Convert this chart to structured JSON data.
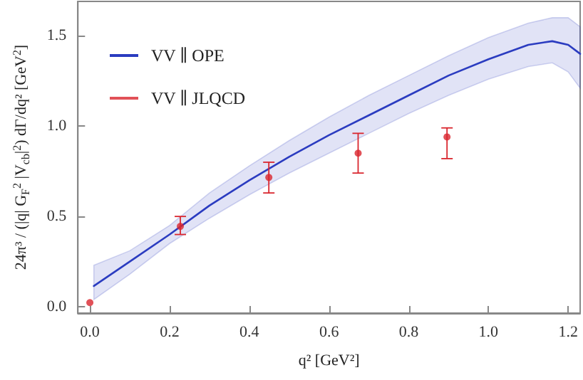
{
  "chart_data": {
    "type": "line",
    "xlabel": "q² [GeV²]",
    "ylabel": "24π³ / (|q| G$_{F}$$^{2}$ |V$_{cb}$|$^{2}$) dΓ/dq² [GeV$^{2}$]",
    "xlim": [
      -0.03,
      1.23
    ],
    "ylim": [
      -0.035,
      1.69
    ],
    "xticks": [
      {
        "value": 0,
        "label": "0.0"
      },
      {
        "value": 0.2,
        "label": "0.2"
      },
      {
        "value": 0.4,
        "label": "0.4"
      },
      {
        "value": 0.6,
        "label": "0.6"
      },
      {
        "value": 0.8,
        "label": "0.8"
      },
      {
        "value": 1.0,
        "label": "1.0"
      },
      {
        "value": 1.2,
        "label": "1.2"
      }
    ],
    "yticks": [
      {
        "value": 0,
        "label": "0.0"
      },
      {
        "value": 0.5,
        "label": "0.5"
      },
      {
        "value": 1.0,
        "label": "1.0"
      },
      {
        "value": 1.5,
        "label": "1.5"
      }
    ],
    "grid": false,
    "legend": "top left",
    "marker": "none",
    "series": [
      {
        "name": "VV ∥ OPE",
        "color": "#2b3cc0",
        "x": [
          0.01,
          0.1,
          0.2,
          0.3,
          0.4,
          0.5,
          0.6,
          0.7,
          0.8,
          0.9,
          1.0,
          1.1,
          1.16,
          1.2,
          1.23
        ],
        "values": [
          0.115,
          0.25,
          0.4,
          0.56,
          0.7,
          0.83,
          0.95,
          1.06,
          1.17,
          1.28,
          1.37,
          1.45,
          1.47,
          1.45,
          1.4
        ],
        "lower": [
          0.04,
          0.18,
          0.35,
          0.49,
          0.62,
          0.74,
          0.85,
          0.96,
          1.07,
          1.17,
          1.26,
          1.33,
          1.35,
          1.3,
          1.21
        ],
        "upper": [
          0.23,
          0.31,
          0.45,
          0.63,
          0.78,
          0.92,
          1.05,
          1.17,
          1.28,
          1.39,
          1.49,
          1.57,
          1.6,
          1.6,
          1.55
        ]
      },
      {
        "name": "VV ∥ JLQCD",
        "type": "scatter",
        "marker": "circle",
        "color": "#d9262e",
        "x": [
          0.0,
          0.227,
          0.449,
          0.673,
          0.896
        ],
        "values": [
          0.023,
          0.445,
          0.716,
          0.85,
          0.94
        ],
        "errors": [
          null,
          [
            0.4,
            0.5
          ],
          [
            0.63,
            0.8
          ],
          [
            0.74,
            0.96
          ],
          [
            0.82,
            0.99
          ]
        ]
      }
    ]
  }
}
